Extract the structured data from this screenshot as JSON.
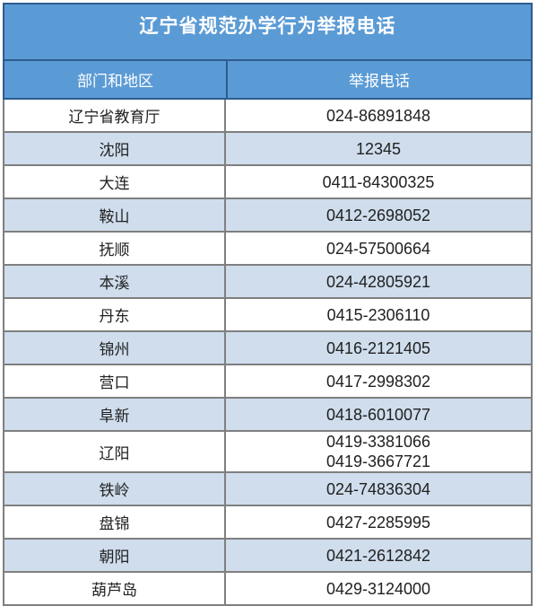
{
  "table": {
    "title": "辽宁省规范办学行为举报电话",
    "columns": [
      "部门和地区",
      "举报电话"
    ],
    "rows": [
      {
        "region": "辽宁省教育厅",
        "phones": [
          "024-86891848"
        ]
      },
      {
        "region": "沈阳",
        "phones": [
          "12345"
        ]
      },
      {
        "region": "大连",
        "phones": [
          "0411-84300325"
        ]
      },
      {
        "region": "鞍山",
        "phones": [
          "0412-2698052"
        ]
      },
      {
        "region": "抚顺",
        "phones": [
          "024-57500664"
        ]
      },
      {
        "region": "本溪",
        "phones": [
          "024-42805921"
        ]
      },
      {
        "region": "丹东",
        "phones": [
          "0415-2306110"
        ]
      },
      {
        "region": "锦州",
        "phones": [
          "0416-2121405"
        ]
      },
      {
        "region": "营口",
        "phones": [
          "0417-2998302"
        ]
      },
      {
        "region": "阜新",
        "phones": [
          "0418-6010077"
        ]
      },
      {
        "region": "辽阳",
        "phones": [
          "0419-3381066",
          "0419-3667721"
        ]
      },
      {
        "region": "铁岭",
        "phones": [
          "024-74836304"
        ]
      },
      {
        "region": "盘锦",
        "phones": [
          "0427-2285995"
        ]
      },
      {
        "region": "朝阳",
        "phones": [
          "0421-2612842"
        ]
      },
      {
        "region": "葫芦岛",
        "phones": [
          "0429-3124000"
        ]
      }
    ],
    "colors": {
      "header_blue": "#5b9bd5",
      "header_border": "#2e5b8f",
      "row_alt_blue": "#cfdded",
      "row_border_gray": "#7f7f7f",
      "text_dark": "#212121",
      "text_light": "#ffffff"
    }
  }
}
